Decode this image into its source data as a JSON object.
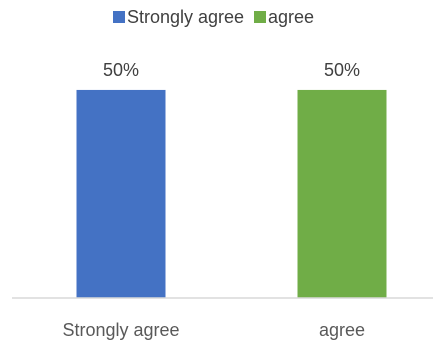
{
  "chart_data": {
    "type": "bar",
    "categories": [
      "Strongly agree",
      "agree"
    ],
    "values": [
      50,
      50
    ],
    "data_labels": [
      "50%",
      "50%"
    ],
    "colors": [
      "#4472C4",
      "#70AD47"
    ],
    "legend": {
      "placement": "top",
      "entries": [
        "Strongly agree",
        "agree"
      ]
    },
    "ylim": [
      0,
      62
    ],
    "grid": false
  }
}
